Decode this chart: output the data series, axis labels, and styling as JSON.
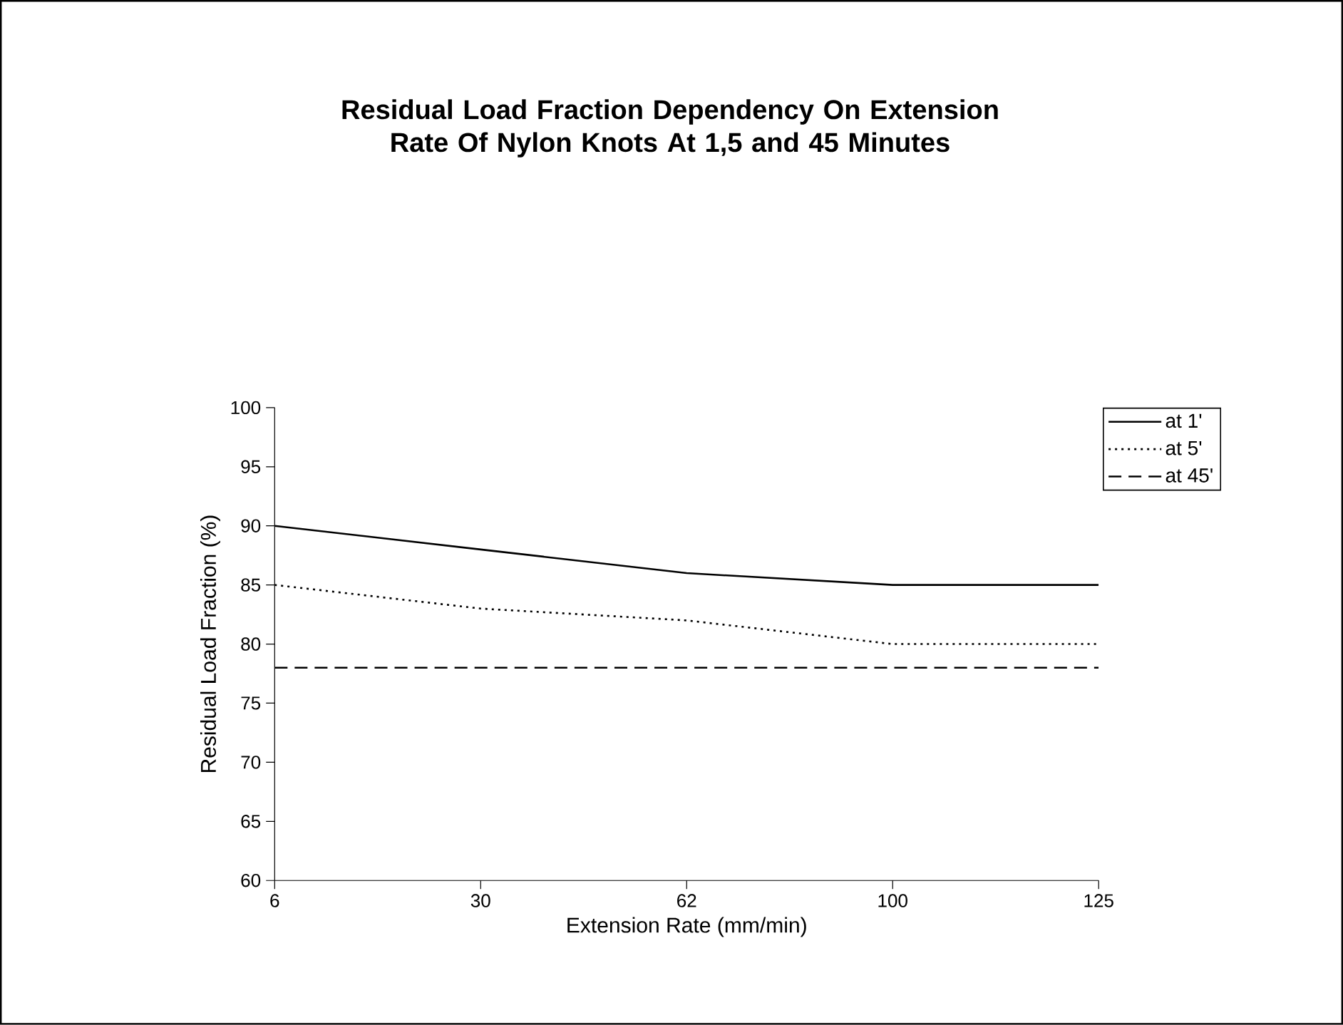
{
  "chart_data": {
    "type": "line",
    "title": "Residual Load Fraction Dependency On Extension Rate Of Nylon Knots At 1,5 and 45 Minutes",
    "xlabel": "Extension Rate (mm/min)",
    "ylabel": "Residual Load Fraction (%)",
    "categories": [
      "6",
      "30",
      "62",
      "100",
      "125"
    ],
    "series": [
      {
        "name": "at 1'",
        "color": "#000000",
        "line_style": "solid",
        "values": [
          90,
          88,
          86,
          85,
          85
        ]
      },
      {
        "name": "at 5'",
        "color": "#000000",
        "line_style": "dotted",
        "values": [
          85,
          83,
          82,
          80,
          80
        ]
      },
      {
        "name": "at 45'",
        "color": "#000000",
        "line_style": "dashed",
        "values": [
          78,
          78,
          78,
          78,
          78
        ]
      }
    ],
    "ylim": [
      60,
      100
    ],
    "yticks": [
      60,
      65,
      70,
      75,
      80,
      85,
      90,
      95,
      100
    ],
    "grid": false,
    "legend": "right",
    "marker": "none"
  }
}
